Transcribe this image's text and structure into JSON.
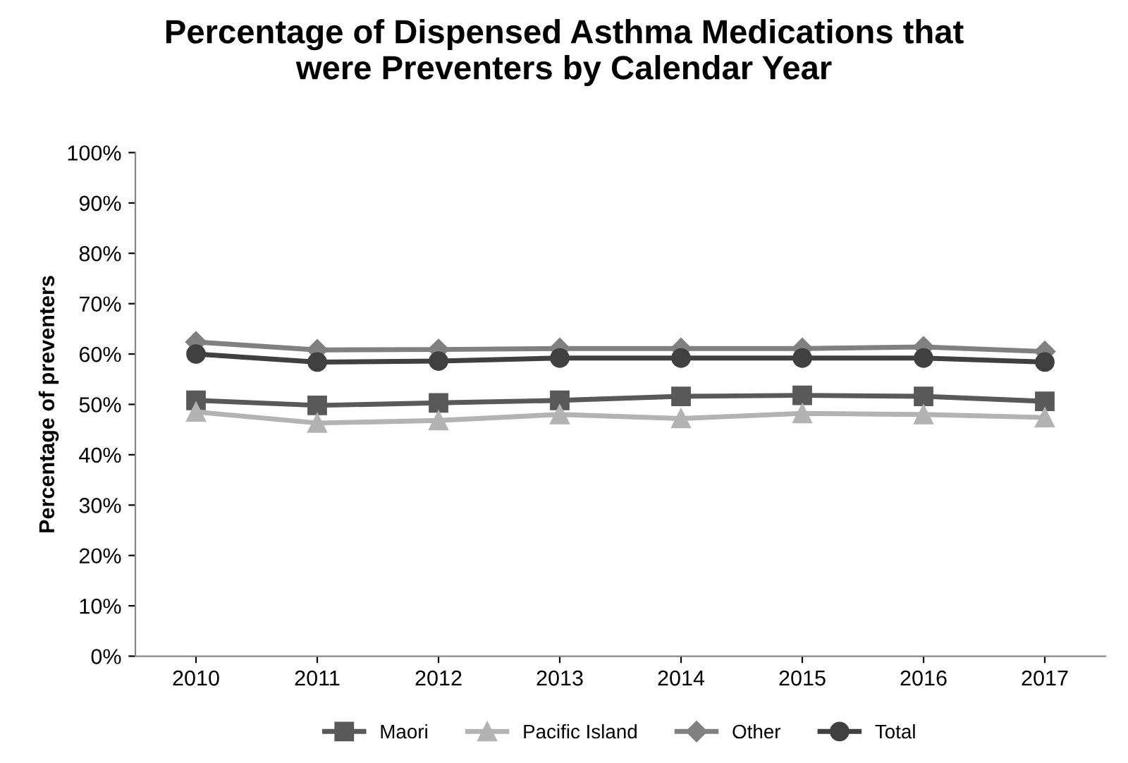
{
  "chart_data": {
    "type": "line",
    "title": "Percentage of Dispensed Asthma Medications that\nwere Preventers by Calendar Year",
    "ylabel": "Percentage of preventers",
    "categories": [
      "2010",
      "2011",
      "2012",
      "2013",
      "2014",
      "2015",
      "2016",
      "2017"
    ],
    "series": [
      {
        "name": "Maori",
        "color": "#595959",
        "marker": "square",
        "values": [
          50.8,
          49.8,
          50.3,
          50.8,
          51.6,
          51.8,
          51.6,
          50.6
        ]
      },
      {
        "name": "Pacific Island",
        "color": "#b3b3b3",
        "marker": "triangle",
        "values": [
          48.5,
          46.3,
          46.8,
          48.0,
          47.2,
          48.2,
          48.0,
          47.4
        ]
      },
      {
        "name": "Other",
        "color": "#808080",
        "marker": "diamond",
        "values": [
          62.4,
          60.8,
          60.9,
          61.1,
          61.1,
          61.1,
          61.4,
          60.5
        ]
      },
      {
        "name": "Total",
        "color": "#404040",
        "marker": "circle",
        "values": [
          60.0,
          58.4,
          58.6,
          59.2,
          59.2,
          59.2,
          59.2,
          58.4
        ]
      }
    ],
    "ylim": [
      0,
      100
    ],
    "yticks": [
      {
        "value": 0,
        "label": "0%"
      },
      {
        "value": 10,
        "label": "10%"
      },
      {
        "value": 20,
        "label": "20%"
      },
      {
        "value": 30,
        "label": "30%"
      },
      {
        "value": 40,
        "label": "40%"
      },
      {
        "value": 50,
        "label": "50%"
      },
      {
        "value": 60,
        "label": "60%"
      },
      {
        "value": 70,
        "label": "70%"
      },
      {
        "value": 80,
        "label": "80%"
      },
      {
        "value": 90,
        "label": "90%"
      },
      {
        "value": 100,
        "label": "100%"
      }
    ],
    "grid": false,
    "legend": "bottom",
    "line_style": "solid"
  }
}
